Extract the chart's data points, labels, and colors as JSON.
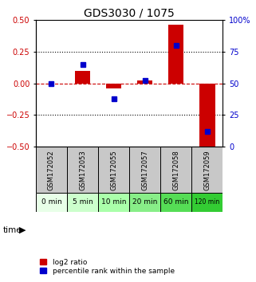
{
  "title": "GDS3030 / 1075",
  "samples": [
    "GSM172052",
    "GSM172053",
    "GSM172055",
    "GSM172057",
    "GSM172058",
    "GSM172059"
  ],
  "time_labels": [
    "0 min",
    "5 min",
    "10 min",
    "20 min",
    "60 min",
    "120 min"
  ],
  "log2_ratio": [
    0.0,
    0.1,
    -0.04,
    0.02,
    0.46,
    -0.5
  ],
  "percentile_rank": [
    50,
    65,
    38,
    52,
    80,
    12
  ],
  "ylim_left": [
    -0.5,
    0.5
  ],
  "ylim_right": [
    0,
    100
  ],
  "yticks_left": [
    -0.5,
    -0.25,
    0,
    0.25,
    0.5
  ],
  "yticks_right": [
    0,
    25,
    50,
    75,
    100
  ],
  "ytick_labels_right": [
    "0",
    "25",
    "50",
    "75",
    "100%"
  ],
  "bar_color_red": "#cc0000",
  "bar_color_blue": "#0000cc",
  "hline_color": "#cc0000",
  "dotted_color": "#000000",
  "bg_color": "#ffffff",
  "cell_bg_gray": "#c8c8c8",
  "time_bg_colors": [
    "#e8ffe8",
    "#ccffcc",
    "#aaffaa",
    "#88ee88",
    "#55dd55",
    "#33cc33"
  ],
  "bar_width": 0.5,
  "title_fontsize": 10,
  "tick_fontsize": 7,
  "label_fontsize": 7
}
